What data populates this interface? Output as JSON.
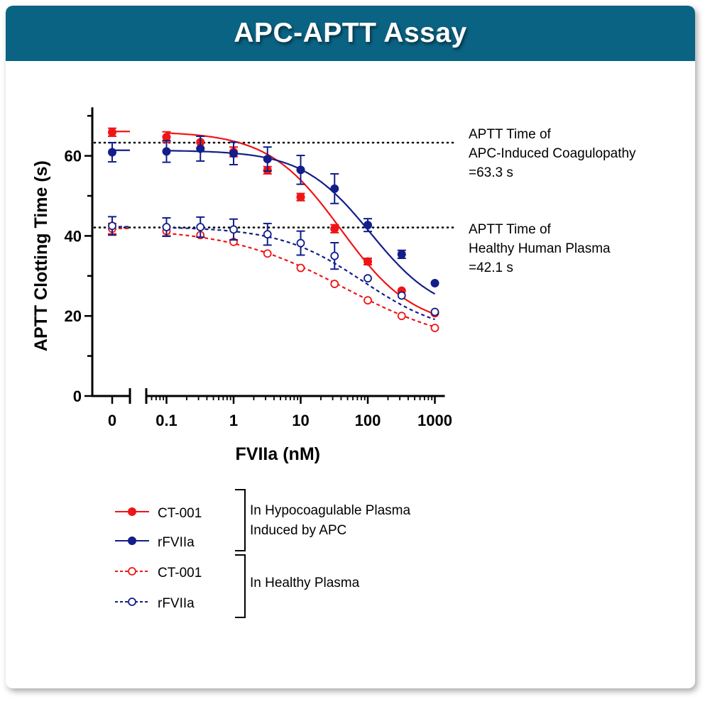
{
  "header": {
    "title": "APC-APTT Assay"
  },
  "colors": {
    "banner": "#0b6384",
    "red": "#f01515",
    "blue": "#121e8a"
  },
  "chart_data": {
    "type": "line",
    "xscale": "log",
    "xlabel": "FVIIa (nM)",
    "ylabel": "APTT Clotting Time (s)",
    "x_tick_labels": [
      "0",
      "0.1",
      "1",
      "10",
      "100",
      "1000"
    ],
    "y_tick_labels": [
      "0",
      "20",
      "40",
      "60"
    ],
    "ylim": [
      0,
      70
    ],
    "xlim": [
      0.05,
      1000
    ],
    "x": [
      0,
      0.1,
      0.32,
      1,
      3.2,
      10,
      32,
      100,
      320,
      1000
    ],
    "series": [
      {
        "key": "ct_apc",
        "name": "CT-001",
        "color": "#f01515",
        "filled": true,
        "dashed": false,
        "values": [
          65.9,
          64.7,
          63.4,
          61.0,
          56.4,
          49.7,
          41.8,
          33.6,
          26.3,
          20.7
        ],
        "errors": [
          1.0,
          1.3,
          1.5,
          1.2,
          0.9,
          0.9,
          1.0,
          0.8,
          0.4,
          0.4
        ],
        "fit": {
          "top": 66.1,
          "bottom": 17.0,
          "ec50": 40,
          "hill": 0.8
        }
      },
      {
        "key": "rf_apc",
        "name": "rFVIIa",
        "color": "#121e8a",
        "filled": true,
        "dashed": false,
        "values": [
          60.9,
          61.1,
          61.8,
          60.6,
          59.2,
          56.5,
          51.8,
          42.7,
          35.4,
          28.2
        ],
        "errors": [
          2.4,
          2.7,
          3.1,
          2.8,
          3.0,
          3.6,
          3.7,
          1.6,
          1.0,
          0.5
        ],
        "fit": {
          "top": 61.4,
          "bottom": 20.0,
          "ec50": 110,
          "hill": 0.85
        }
      },
      {
        "key": "ct_h",
        "name": "CT-001",
        "color": "#f01515",
        "filled": false,
        "dashed": true,
        "values": [
          41.8,
          41.2,
          40.2,
          38.5,
          35.6,
          32.0,
          28.0,
          23.9,
          20.0,
          17.0
        ],
        "errors": [
          1.3,
          1.2,
          0.6,
          0.6,
          0.5,
          0.5,
          0.4,
          0.4,
          0.4,
          0.4
        ],
        "fit": {
          "top": 42.0,
          "bottom": 12.0,
          "ec50": 45,
          "hill": 0.5
        }
      },
      {
        "key": "rf_h",
        "name": "rFVIIa",
        "color": "#121e8a",
        "filled": false,
        "dashed": true,
        "values": [
          42.5,
          42.2,
          42.2,
          41.6,
          40.4,
          38.2,
          35.0,
          29.4,
          25.1,
          21.0
        ],
        "errors": [
          2.3,
          2.3,
          2.5,
          2.6,
          2.7,
          3.0,
          3.3,
          0.6,
          0.5,
          0.5
        ],
        "fit": {
          "top": 42.3,
          "bottom": 15.0,
          "ec50": 85,
          "hill": 0.7
        }
      }
    ],
    "reference_lines": [
      {
        "y": 63.3,
        "label_lines": [
          "APTT Time of",
          "APC-Induced Coagulopathy",
          "=63.3 s"
        ]
      },
      {
        "y": 42.1,
        "label_lines": [
          "APTT Time of",
          "Healthy Human Plasma",
          "=42.1 s"
        ]
      }
    ],
    "legend": {
      "placement": "bottom",
      "groups": [
        {
          "label_lines": [
            "In Hypocoagulable Plasma",
            "Induced by APC"
          ],
          "series": [
            "ct_apc",
            "rf_apc"
          ]
        },
        {
          "label_lines": [
            "In Healthy Plasma"
          ],
          "series": [
            "ct_h",
            "rf_h"
          ]
        }
      ]
    }
  }
}
